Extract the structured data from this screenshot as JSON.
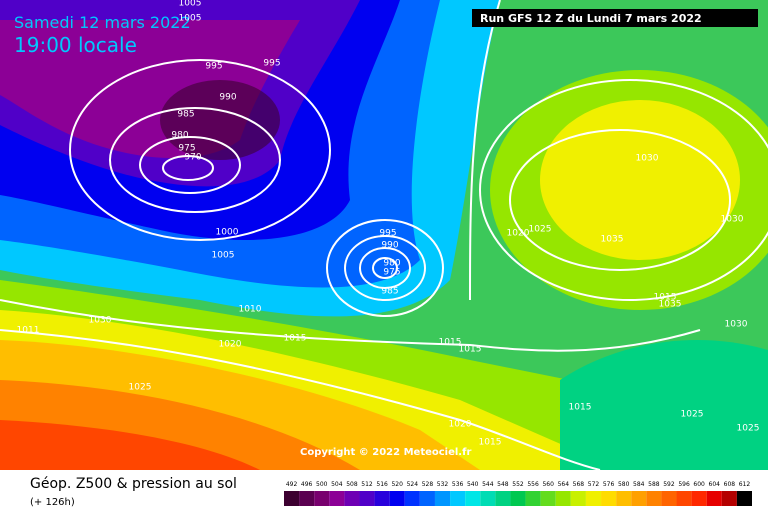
{
  "header": {
    "date": "Samedi 12 mars 2022",
    "time": "19:00 locale",
    "run": "Run GFS 12 Z du Lundi 7 mars 2022"
  },
  "copyright": "Copyright © 2022 Meteociel.fr",
  "footer": {
    "title": "Géop. Z500 & pression au sol",
    "lead": "(+ 126h)"
  },
  "isobar_labels": [
    1005,
    1005,
    995,
    995,
    990,
    985,
    980,
    975,
    970,
    1000,
    1005,
    995,
    990,
    980,
    975,
    985,
    1010,
    1030,
    1011,
    1020,
    1015,
    1015,
    1015,
    1025,
    1020,
    1025,
    1030,
    1030,
    1035,
    1015,
    1035,
    1030,
    1015,
    1025,
    1020,
    1015,
    1025
  ],
  "scale": {
    "labels": [
      492,
      496,
      500,
      504,
      508,
      512,
      516,
      520,
      524,
      528,
      532,
      536,
      540,
      544,
      548,
      552,
      556,
      560,
      564,
      568,
      572,
      576,
      580,
      584,
      588,
      592,
      596,
      600,
      604,
      608,
      612
    ],
    "colors": [
      "#3c0030",
      "#5a0050",
      "#78006e",
      "#8c0096",
      "#6e00b4",
      "#5000c8",
      "#2800dc",
      "#0000f0",
      "#0032ff",
      "#0064ff",
      "#0096ff",
      "#00c8ff",
      "#00e6e6",
      "#00dcb4",
      "#00d282",
      "#00c850",
      "#32d232",
      "#64dc1e",
      "#96e600",
      "#c8f000",
      "#f0f000",
      "#ffdc00",
      "#ffbe00",
      "#ffa000",
      "#ff8200",
      "#ff6400",
      "#ff4600",
      "#ff2800",
      "#e60000",
      "#b40000",
      "#000000"
    ]
  }
}
